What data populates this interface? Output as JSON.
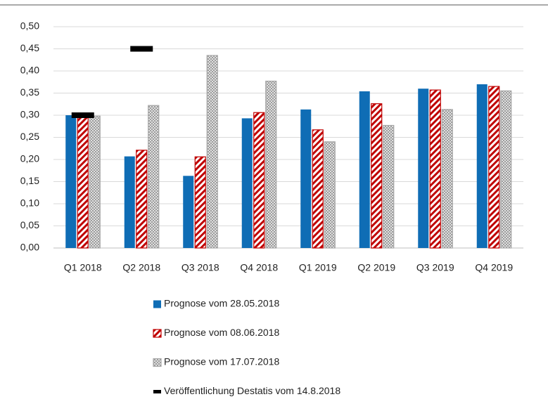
{
  "chart_data": {
    "type": "bar",
    "categories": [
      "Q1 2018",
      "Q2 2018",
      "Q3 2018",
      "Q4 2018",
      "Q1 2019",
      "Q2 2019",
      "Q3 2019",
      "Q4 2019"
    ],
    "series": [
      {
        "name": "Prognose vom 28.05.2018",
        "color": "#0f6db5",
        "pattern": "solid",
        "values": [
          0.3,
          0.207,
          0.163,
          0.293,
          0.313,
          0.354,
          0.36,
          0.37
        ]
      },
      {
        "name": "Prognose vom 08.06.2018",
        "color": "#c00000",
        "pattern": "diagonal",
        "values": [
          0.3,
          0.221,
          0.206,
          0.306,
          0.267,
          0.326,
          0.357,
          0.365
        ]
      },
      {
        "name": "Prognose vom 17.07.2018",
        "color": "#a6a6a6",
        "pattern": "crosshatch",
        "values": [
          0.298,
          0.322,
          0.435,
          0.377,
          0.24,
          0.277,
          0.313,
          0.355
        ]
      },
      {
        "name": "Veröffentlichung Destatis vom 14.8.2018",
        "color": "#000000",
        "marker": "dash",
        "values": [
          0.3,
          0.45,
          null,
          null,
          null,
          null,
          null,
          null
        ]
      }
    ],
    "ylim": [
      0,
      0.5
    ],
    "yticks": [
      {
        "value": 0,
        "label": "0,00"
      },
      {
        "value": 0.05,
        "label": "0,05"
      },
      {
        "value": 0.1,
        "label": "0,10"
      },
      {
        "value": 0.15,
        "label": "0,15"
      },
      {
        "value": 0.2,
        "label": "0,20"
      },
      {
        "value": 0.25,
        "label": "0,25"
      },
      {
        "value": 0.3,
        "label": "0,30"
      },
      {
        "value": 0.35,
        "label": "0,35"
      },
      {
        "value": 0.4,
        "label": "0,40"
      },
      {
        "value": 0.45,
        "label": "0,45"
      },
      {
        "value": 0.5,
        "label": "0,50"
      }
    ],
    "grid": true,
    "legend": "bottom"
  }
}
